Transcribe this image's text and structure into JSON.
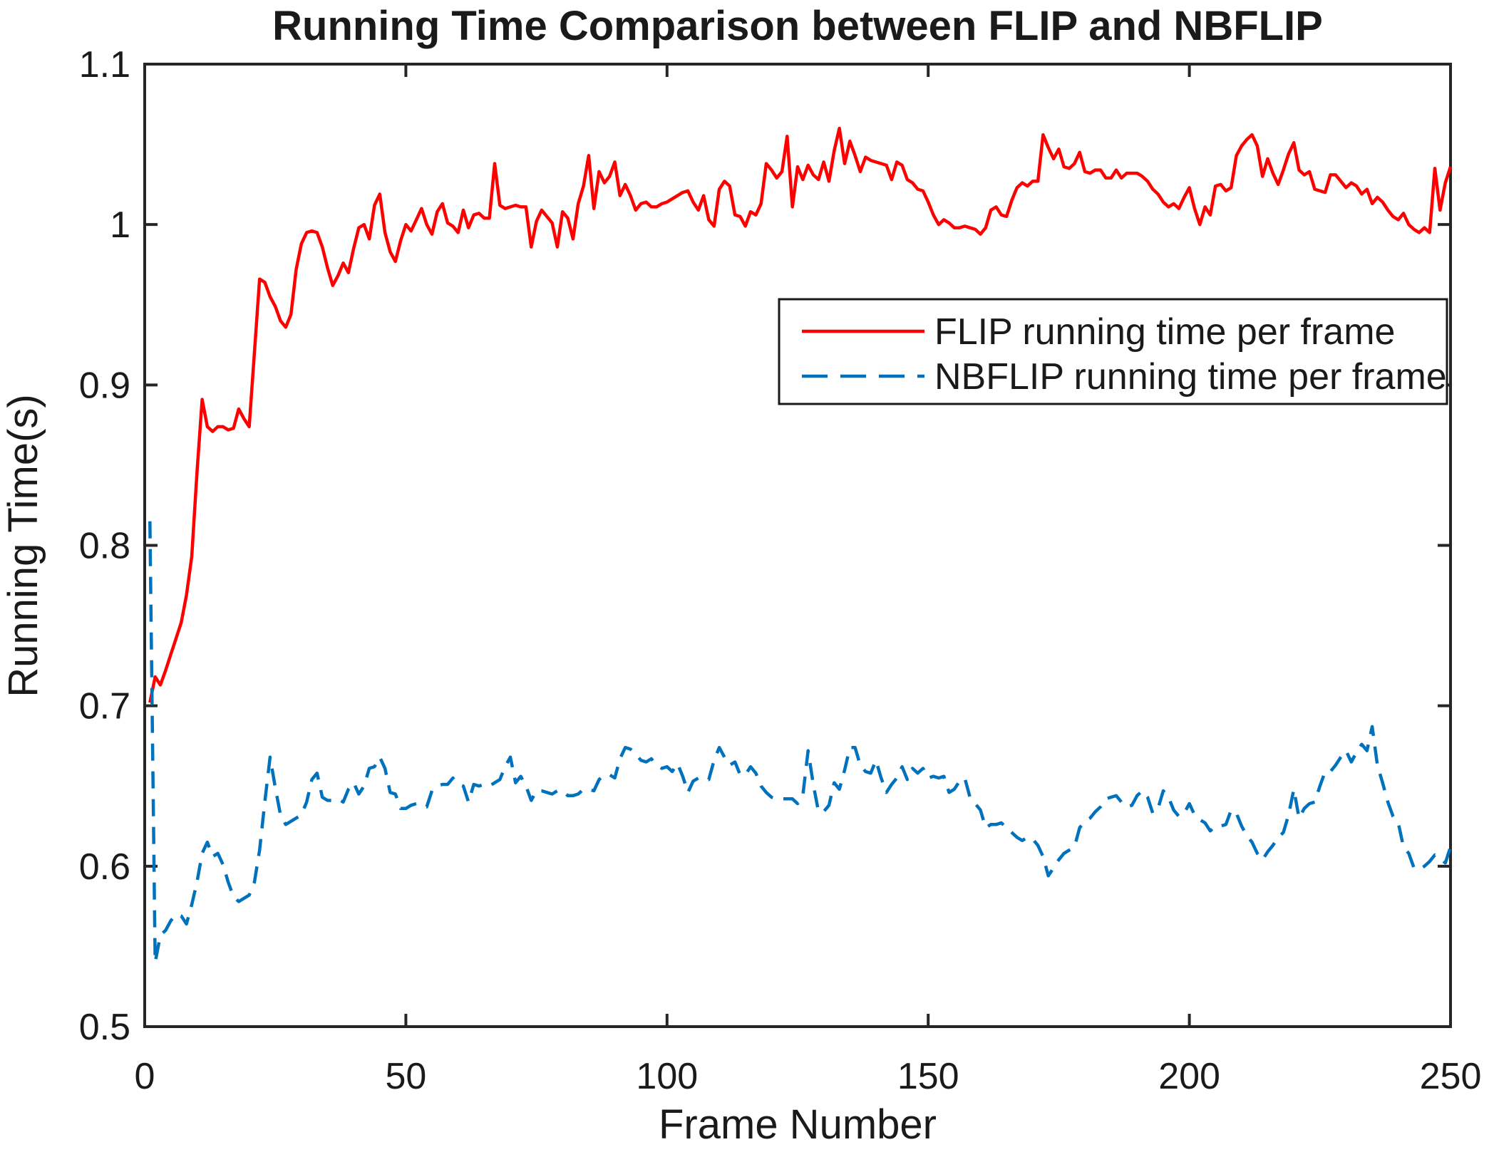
{
  "chart_data": {
    "type": "line",
    "title": "Running Time Comparison between FLIP and NBFLIP",
    "xlabel": "Frame Number",
    "ylabel": "Running Time(s)",
    "xlim": [
      0,
      250
    ],
    "ylim": [
      0.5,
      1.1
    ],
    "x_ticks": [
      "0",
      "50",
      "100",
      "150",
      "200",
      "250"
    ],
    "y_ticks": [
      "0.5",
      "0.6",
      "0.7",
      "0.8",
      "0.9",
      "1",
      "1.1"
    ],
    "grid": false,
    "legend_position": "upper-right-inside",
    "axis_color": "#262626",
    "text_color": "#1a1a1a",
    "background": "#ffffff",
    "series": [
      {
        "name": "FLIP running time per frame",
        "color": "#ff0000",
        "style": "solid",
        "x_start": 1,
        "values": [
          0.702,
          0.718,
          0.713,
          0.722,
          0.732,
          0.742,
          0.752,
          0.769,
          0.793,
          0.845,
          0.891,
          0.874,
          0.871,
          0.874,
          0.874,
          0.872,
          0.873,
          0.885,
          0.879,
          0.874,
          0.92,
          0.966,
          0.964,
          0.955,
          0.949,
          0.94,
          0.936,
          0.944,
          0.972,
          0.988,
          0.995,
          0.996,
          0.995,
          0.986,
          0.973,
          0.962,
          0.968,
          0.976,
          0.97,
          0.985,
          0.998,
          1.0,
          0.991,
          1.012,
          1.019,
          0.995,
          0.983,
          0.977,
          0.99,
          1.0,
          0.996,
          1.003,
          1.01,
          1.0,
          0.994,
          1.008,
          1.013,
          1.001,
          0.999,
          0.995,
          1.009,
          0.998,
          1.006,
          1.007,
          1.004,
          1.004,
          1.038,
          1.012,
          1.01,
          1.011,
          1.012,
          1.011,
          1.011,
          0.986,
          1.002,
          1.009,
          1.005,
          1.001,
          0.986,
          1.008,
          1.004,
          0.991,
          1.013,
          1.024,
          1.043,
          1.01,
          1.033,
          1.026,
          1.03,
          1.039,
          1.018,
          1.025,
          1.018,
          1.009,
          1.013,
          1.014,
          1.011,
          1.011,
          1.013,
          1.014,
          1.016,
          1.018,
          1.02,
          1.021,
          1.014,
          1.009,
          1.018,
          1.003,
          0.999,
          1.022,
          1.027,
          1.024,
          1.006,
          1.005,
          0.999,
          1.008,
          1.006,
          1.013,
          1.038,
          1.034,
          1.029,
          1.033,
          1.055,
          1.011,
          1.036,
          1.028,
          1.037,
          1.031,
          1.028,
          1.039,
          1.027,
          1.046,
          1.06,
          1.038,
          1.052,
          1.043,
          1.033,
          1.042,
          1.04,
          1.039,
          1.038,
          1.037,
          1.028,
          1.039,
          1.037,
          1.028,
          1.026,
          1.022,
          1.021,
          1.014,
          1.006,
          1.0,
          1.003,
          1.001,
          0.998,
          0.998,
          0.999,
          0.998,
          0.997,
          0.994,
          0.998,
          1.009,
          1.011,
          1.006,
          1.005,
          1.015,
          1.023,
          1.026,
          1.024,
          1.027,
          1.027,
          1.056,
          1.048,
          1.041,
          1.047,
          1.036,
          1.035,
          1.038,
          1.045,
          1.033,
          1.032,
          1.034,
          1.034,
          1.029,
          1.029,
          1.034,
          1.029,
          1.032,
          1.032,
          1.032,
          1.03,
          1.027,
          1.022,
          1.019,
          1.014,
          1.011,
          1.013,
          1.01,
          1.017,
          1.023,
          1.01,
          1.0,
          1.011,
          1.006,
          1.024,
          1.025,
          1.021,
          1.023,
          1.043,
          1.049,
          1.053,
          1.056,
          1.049,
          1.03,
          1.041,
          1.032,
          1.025,
          1.034,
          1.044,
          1.051,
          1.034,
          1.031,
          1.033,
          1.022,
          1.021,
          1.02,
          1.031,
          1.031,
          1.027,
          1.023,
          1.026,
          1.024,
          1.019,
          1.022,
          1.013,
          1.017,
          1.014,
          1.009,
          1.005,
          1.003,
          1.007,
          1.0,
          0.997,
          0.995,
          0.998,
          0.995,
          1.035,
          1.009,
          1.026,
          1.036
        ]
      },
      {
        "name": "NBFLIP running time per frame",
        "color": "#0072bd",
        "style": "dashed",
        "x_start": 1,
        "values": [
          0.815,
          0.54,
          0.557,
          0.56,
          0.566,
          0.57,
          0.569,
          0.564,
          0.576,
          0.59,
          0.608,
          0.615,
          0.606,
          0.608,
          0.601,
          0.59,
          0.581,
          0.578,
          0.58,
          0.582,
          0.59,
          0.61,
          0.64,
          0.668,
          0.649,
          0.632,
          0.626,
          0.628,
          0.63,
          0.632,
          0.64,
          0.654,
          0.658,
          0.643,
          0.641,
          0.641,
          0.642,
          0.64,
          0.648,
          0.652,
          0.645,
          0.65,
          0.661,
          0.662,
          0.668,
          0.661,
          0.646,
          0.645,
          0.636,
          0.636,
          0.638,
          0.639,
          0.638,
          0.637,
          0.647,
          0.65,
          0.651,
          0.651,
          0.655,
          0.651,
          0.65,
          0.64,
          0.651,
          0.65,
          0.651,
          0.65,
          0.652,
          0.654,
          0.662,
          0.668,
          0.652,
          0.656,
          0.65,
          0.641,
          0.647,
          0.647,
          0.646,
          0.645,
          0.647,
          0.647,
          0.644,
          0.644,
          0.645,
          0.648,
          0.648,
          0.647,
          0.654,
          0.657,
          0.657,
          0.655,
          0.667,
          0.674,
          0.673,
          0.67,
          0.666,
          0.665,
          0.667,
          0.663,
          0.661,
          0.662,
          0.659,
          0.664,
          0.656,
          0.646,
          0.653,
          0.655,
          0.655,
          0.654,
          0.666,
          0.674,
          0.668,
          0.663,
          0.665,
          0.657,
          0.657,
          0.662,
          0.658,
          0.65,
          0.646,
          0.643,
          0.642,
          0.642,
          0.642,
          0.642,
          0.639,
          0.644,
          0.672,
          0.651,
          0.634,
          0.634,
          0.638,
          0.652,
          0.648,
          0.66,
          0.674,
          0.674,
          0.663,
          0.659,
          0.658,
          0.666,
          0.655,
          0.646,
          0.651,
          0.655,
          0.662,
          0.654,
          0.661,
          0.658,
          0.661,
          0.655,
          0.656,
          0.655,
          0.656,
          0.646,
          0.648,
          0.653,
          0.655,
          0.643,
          0.639,
          0.635,
          0.624,
          0.626,
          0.626,
          0.627,
          0.624,
          0.621,
          0.618,
          0.616,
          0.618,
          0.617,
          0.613,
          0.606,
          0.594,
          0.599,
          0.604,
          0.608,
          0.61,
          0.612,
          0.624,
          0.628,
          0.63,
          0.634,
          0.637,
          0.642,
          0.643,
          0.644,
          0.64,
          0.637,
          0.638,
          0.644,
          0.647,
          0.643,
          0.633,
          0.636,
          0.647,
          0.643,
          0.635,
          0.631,
          0.633,
          0.639,
          0.632,
          0.629,
          0.627,
          0.622,
          0.625,
          0.625,
          0.626,
          0.635,
          0.633,
          0.625,
          0.619,
          0.615,
          0.608,
          0.604,
          0.609,
          0.613,
          0.618,
          0.621,
          0.632,
          0.648,
          0.63,
          0.636,
          0.639,
          0.64,
          0.65,
          0.659,
          0.659,
          0.663,
          0.668,
          0.672,
          0.665,
          0.671,
          0.676,
          0.672,
          0.687,
          0.663,
          0.652,
          0.64,
          0.631,
          0.627,
          0.612,
          0.608,
          0.599,
          0.598,
          0.6,
          0.603,
          0.607,
          0.605,
          0.602,
          0.612
        ]
      }
    ]
  }
}
